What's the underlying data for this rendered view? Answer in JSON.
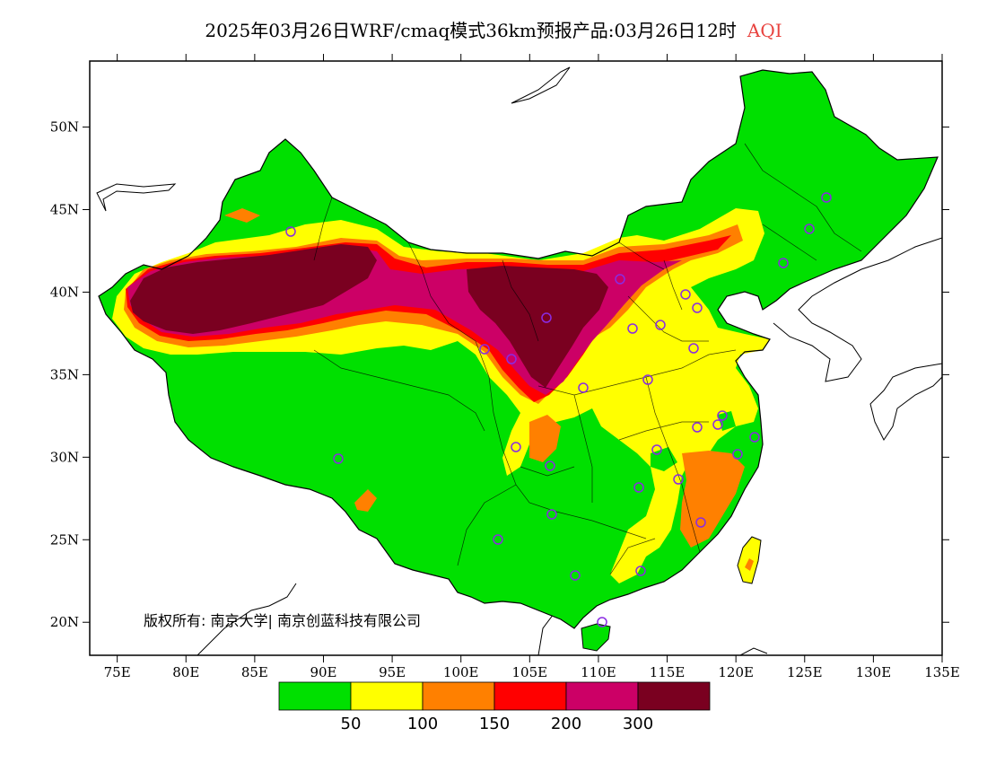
{
  "title": {
    "main": "2025年03月26日WRF/cmaq模式36km预报产品:03月26日12时",
    "variable": "AQI",
    "variable_color": "#e8433f"
  },
  "map": {
    "x_ticks": [
      "75E",
      "80E",
      "85E",
      "90E",
      "95E",
      "100E",
      "105E",
      "110E",
      "115E",
      "120E",
      "125E",
      "130E",
      "135E"
    ],
    "y_ticks": [
      "50N",
      "45N",
      "40N",
      "35N",
      "30N",
      "25N",
      "20N"
    ],
    "copyright": "版权所有: 南京大学| 南京创蓝科技有限公司",
    "colors": {
      "good": "#00e000",
      "moderate": "#ffff00",
      "sensitive": "#ff8000",
      "unhealthy": "#ff0000",
      "very_unhealthy": "#cc0066",
      "hazardous": "#7a0020",
      "station": "#8a2be2"
    }
  },
  "colorbar": {
    "colors": [
      "#00e000",
      "#ffff00",
      "#ff8000",
      "#ff0000",
      "#cc0066",
      "#7a0020"
    ],
    "labels": [
      "50",
      "100",
      "150",
      "200",
      "300"
    ]
  }
}
